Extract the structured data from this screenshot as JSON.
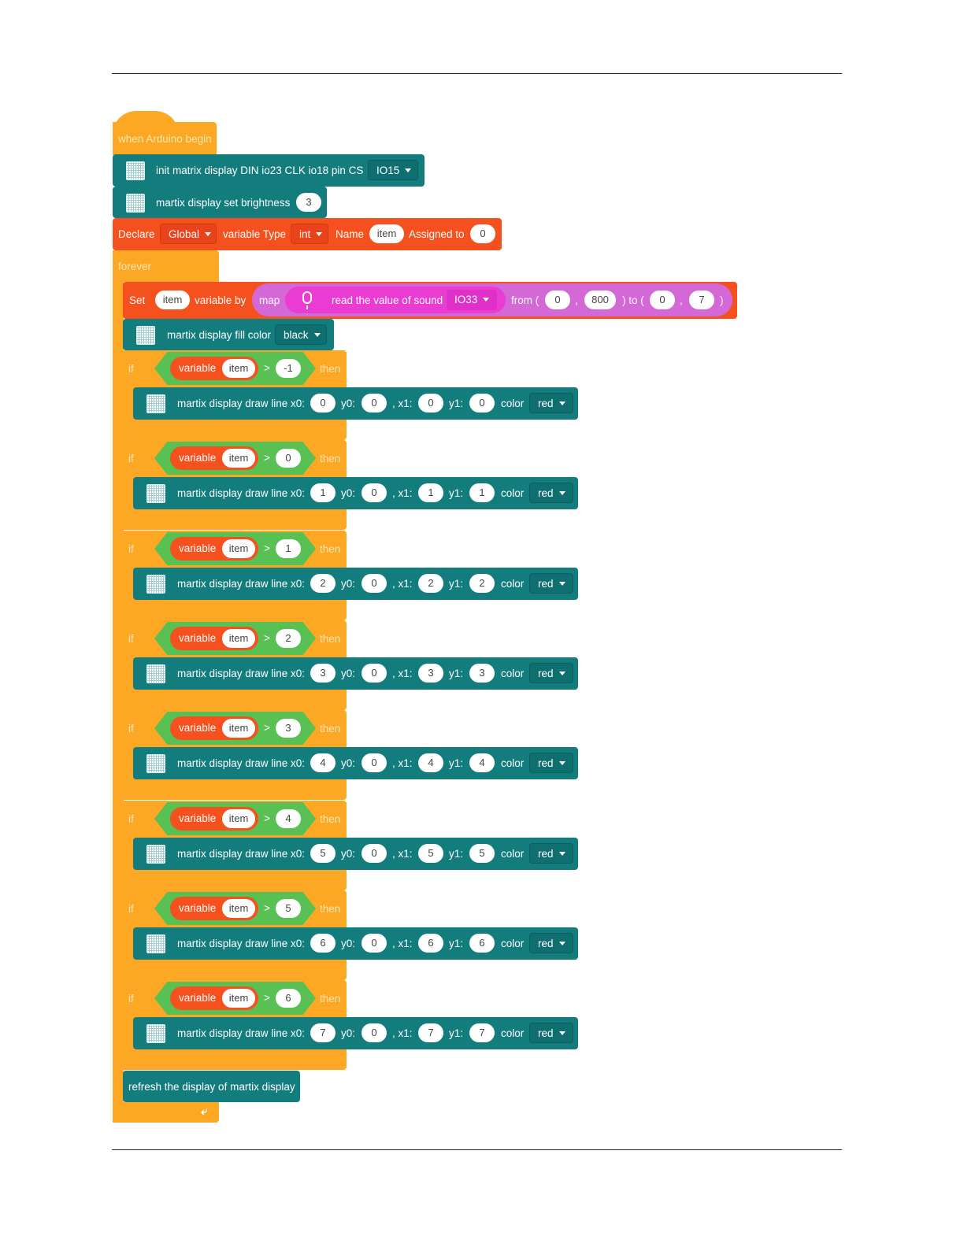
{
  "colors": {
    "event": "#fda824",
    "matrix": "#137d7e",
    "variable": "#f4511e",
    "logic": "#59c053",
    "sensor": "#d468d6"
  },
  "hat": {
    "label": "when Arduino begin"
  },
  "init": {
    "label": "init matrix display DIN io23 CLK io18 pin CS",
    "cs_pin": "IO15"
  },
  "brightness": {
    "label": "martix display set brightness",
    "value": "3"
  },
  "declare": {
    "declare_label": "Declare",
    "scope": "Global",
    "type_label": "variable Type",
    "type": "int",
    "name_label": "Name",
    "name": "item",
    "assigned_label": "Assigned to",
    "value": "0"
  },
  "forever": {
    "label": "forever",
    "loop_icon": "loop-arrow-icon"
  },
  "set": {
    "set_label": "Set",
    "var": "item",
    "by_label": "variable by",
    "map_label": "map",
    "sound_label": "read the value of sound",
    "pin": "IO33",
    "mic_icon": "microphone-icon",
    "from_label": "from (",
    "from_low": "0",
    "comma1": ",",
    "from_high": "800",
    "to_label": ") to (",
    "to_low": "0",
    "comma2": ",",
    "to_high": "7",
    "close": ")"
  },
  "fill": {
    "label": "martix display fill color",
    "color": "black"
  },
  "conditionals": [
    {
      "if": "if",
      "var_label": "variable",
      "var": "item",
      "op": ">",
      "cmp": "-1",
      "then": "then",
      "draw": "martix display draw line x0:",
      "x0": "0",
      "y0_label": "y0:",
      "y0": "0",
      "x1_label": ", x1:",
      "x1": "0",
      "y1_label": "y1:",
      "y1": "0",
      "color_label": "color",
      "color": "red"
    },
    {
      "if": "if",
      "var_label": "variable",
      "var": "item",
      "op": ">",
      "cmp": "0",
      "then": "then",
      "draw": "martix display draw line x0:",
      "x0": "1",
      "y0_label": "y0:",
      "y0": "0",
      "x1_label": ", x1:",
      "x1": "1",
      "y1_label": "y1:",
      "y1": "1",
      "color_label": "color",
      "color": "red"
    },
    {
      "if": "if",
      "var_label": "variable",
      "var": "item",
      "op": ">",
      "cmp": "1",
      "then": "then",
      "draw": "martix display draw line x0:",
      "x0": "2",
      "y0_label": "y0:",
      "y0": "0",
      "x1_label": ", x1:",
      "x1": "2",
      "y1_label": "y1:",
      "y1": "2",
      "color_label": "color",
      "color": "red"
    },
    {
      "if": "if",
      "var_label": "variable",
      "var": "item",
      "op": ">",
      "cmp": "2",
      "then": "then",
      "draw": "martix display draw line x0:",
      "x0": "3",
      "y0_label": "y0:",
      "y0": "0",
      "x1_label": ", x1:",
      "x1": "3",
      "y1_label": "y1:",
      "y1": "3",
      "color_label": "color",
      "color": "red"
    },
    {
      "if": "if",
      "var_label": "variable",
      "var": "item",
      "op": ">",
      "cmp": "3",
      "then": "then",
      "draw": "martix display draw line x0:",
      "x0": "4",
      "y0_label": "y0:",
      "y0": "0",
      "x1_label": ", x1:",
      "x1": "4",
      "y1_label": "y1:",
      "y1": "4",
      "color_label": "color",
      "color": "red"
    },
    {
      "if": "if",
      "var_label": "variable",
      "var": "item",
      "op": ">",
      "cmp": "4",
      "then": "then",
      "draw": "martix display draw line x0:",
      "x0": "5",
      "y0_label": "y0:",
      "y0": "0",
      "x1_label": ", x1:",
      "x1": "5",
      "y1_label": "y1:",
      "y1": "5",
      "color_label": "color",
      "color": "red"
    },
    {
      "if": "if",
      "var_label": "variable",
      "var": "item",
      "op": ">",
      "cmp": "5",
      "then": "then",
      "draw": "martix display draw line x0:",
      "x0": "6",
      "y0_label": "y0:",
      "y0": "0",
      "x1_label": ", x1:",
      "x1": "6",
      "y1_label": "y1:",
      "y1": "6",
      "color_label": "color",
      "color": "red"
    },
    {
      "if": "if",
      "var_label": "variable",
      "var": "item",
      "op": ">",
      "cmp": "6",
      "then": "then",
      "draw": "martix display draw line x0:",
      "x0": "7",
      "y0_label": "y0:",
      "y0": "0",
      "x1_label": ", x1:",
      "x1": "7",
      "y1_label": "y1:",
      "y1": "7",
      "color_label": "color",
      "color": "red"
    }
  ],
  "refresh": {
    "label": "refresh the display of martix display"
  }
}
